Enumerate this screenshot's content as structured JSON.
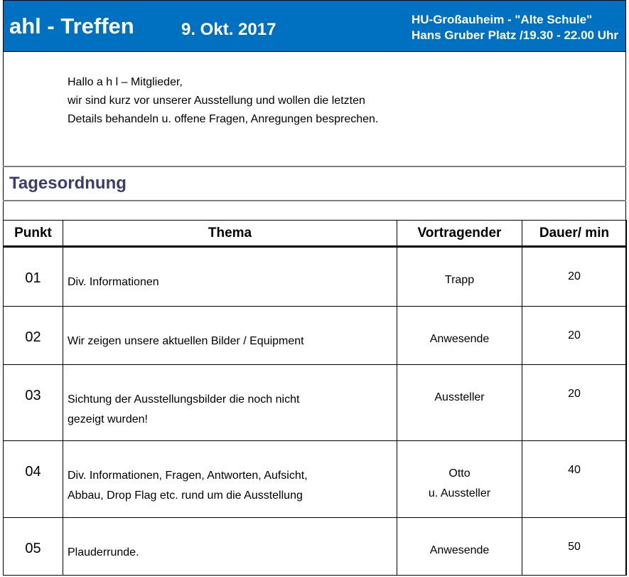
{
  "header": {
    "title": "ahl - Treffen",
    "date": "9. Okt. 2017",
    "location_line1": "HU-Großauheim - \"Alte Schule\"",
    "location_line2": "Hans Gruber Platz /19.30 - 22.00 Uhr",
    "background_color": "#0070C0"
  },
  "intro": {
    "lines": [
      "Hallo a h l – Mitglieder,",
      "wir sind kurz vor unserer Ausstellung und wollen die letzten",
      "Details behandeln u. offene Fragen, Anregungen besprechen."
    ]
  },
  "agenda": {
    "heading": "Tagesordnung",
    "heading_color": "#3c3c6e"
  },
  "table": {
    "columns": [
      "Punkt",
      "Thema",
      "Vortragender",
      "Dauer/ min"
    ],
    "rows": [
      {
        "punkt": "01",
        "thema": [
          "Div. Informationen"
        ],
        "vortragender": [
          "Trapp"
        ],
        "dauer": "20"
      },
      {
        "punkt": "02",
        "thema": [
          "Wir zeigen unsere aktuellen Bilder / Equipment"
        ],
        "vortragender": [
          "Anwesende"
        ],
        "dauer": "20"
      },
      {
        "punkt": "03",
        "thema": [
          "Sichtung der Ausstellungsbilder die noch nicht",
          "gezeigt wurden!"
        ],
        "vortragender": [
          "Aussteller"
        ],
        "dauer": "20"
      },
      {
        "punkt": "04",
        "thema": [
          "Div. Informationen, Fragen, Antworten, Aufsicht,",
          "Abbau, Drop Flag etc. rund um die Ausstellung"
        ],
        "vortragender": [
          "Otto",
          "u. Aussteller"
        ],
        "dauer": "40"
      },
      {
        "punkt": "05",
        "thema": [
          "Plauderrunde."
        ],
        "vortragender": [
          "Anwesende"
        ],
        "dauer": "50"
      }
    ]
  }
}
